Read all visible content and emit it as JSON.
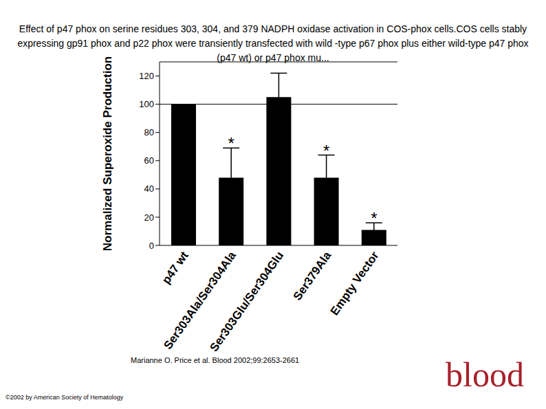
{
  "chart_data": {
    "type": "bar",
    "title": "Effect of p47 phox on serine residues 303, 304, and 379 NADPH oxidase activation in COS-phox cells.COS cells stably expressing gp91 phox and p22 phox were transiently transfected with wild -type p67 phox plus either wild-type p47 phox (p47 wt) or p47 phox mu...",
    "y_label": "Normalized Superoxide Production",
    "categories": [
      "p47 wt",
      "Ser303Ala/Ser304Ala",
      "Ser303Glu/Ser304Glu",
      "Ser379Ala",
      "Empty Vector"
    ],
    "values": [
      100,
      48,
      105,
      48,
      11
    ],
    "errors": [
      0,
      21,
      17,
      16,
      5
    ],
    "annotations": [
      null,
      "*",
      null,
      "*",
      "*"
    ],
    "reference_line": 100,
    "color": "#000000",
    "ylim": [
      0,
      130
    ],
    "yticks": [
      0,
      20,
      40,
      60,
      80,
      100,
      120
    ],
    "grid": false,
    "caption": "Marianne O. Price et al. Blood 2002;99:2653-2661",
    "copyright": "©2002 by American Society of Hematology",
    "logo": "blood"
  }
}
